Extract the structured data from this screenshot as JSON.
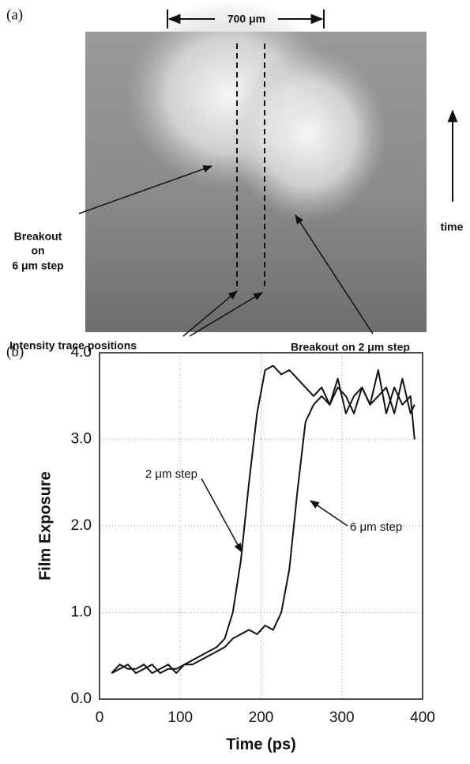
{
  "panel_a": {
    "label": "(a)",
    "scale": "700 μm",
    "breakout_6um": [
      "Breakout",
      "on",
      "6 μm step"
    ],
    "time": "time",
    "trace_positions": "Intensity trace positions",
    "breakout_2um": "Breakout on 2 μm step"
  },
  "chart_data": {
    "type": "line",
    "panel_label": "(b)",
    "x_label": "Time (ps)",
    "y_label": "Film Exposure",
    "x": [
      15,
      25,
      35,
      45,
      55,
      65,
      75,
      85,
      95,
      105,
      115,
      125,
      135,
      145,
      155,
      165,
      175,
      185,
      195,
      205,
      215,
      225,
      235,
      245,
      255,
      265,
      275,
      285,
      295,
      305,
      315,
      325,
      335,
      345,
      355,
      365,
      375,
      385,
      390
    ],
    "series": [
      {
        "name": "2 μm step",
        "color": "#111111",
        "values": [
          0.3,
          0.4,
          0.35,
          0.35,
          0.4,
          0.3,
          0.35,
          0.4,
          0.3,
          0.4,
          0.45,
          0.5,
          0.55,
          0.6,
          0.7,
          1.0,
          1.6,
          2.5,
          3.3,
          3.8,
          3.85,
          3.75,
          3.8,
          3.7,
          3.6,
          3.5,
          3.6,
          3.4,
          3.7,
          3.3,
          3.5,
          3.6,
          3.4,
          3.8,
          3.3,
          3.6,
          3.4,
          3.5,
          3.0
        ]
      },
      {
        "name": "6 μm step",
        "color": "#111111",
        "values": [
          0.3,
          0.35,
          0.4,
          0.3,
          0.35,
          0.4,
          0.3,
          0.35,
          0.35,
          0.4,
          0.4,
          0.45,
          0.5,
          0.55,
          0.6,
          0.7,
          0.75,
          0.8,
          0.75,
          0.85,
          0.8,
          1.0,
          1.5,
          2.4,
          3.2,
          3.4,
          3.5,
          3.4,
          3.6,
          3.5,
          3.3,
          3.6,
          3.4,
          3.5,
          3.6,
          3.3,
          3.7,
          3.3,
          3.4
        ]
      }
    ],
    "xlim": [
      0,
      400
    ],
    "xticks": [
      0,
      100,
      200,
      300,
      400
    ],
    "ylim": [
      0,
      4
    ],
    "yticks": [
      {
        "value": 0,
        "label": "0.0"
      },
      {
        "value": 1,
        "label": "1.0"
      },
      {
        "value": 2,
        "label": "2.0"
      },
      {
        "value": 3,
        "label": "3.0"
      },
      {
        "value": 4,
        "label": "4.0"
      }
    ],
    "grid": true
  }
}
